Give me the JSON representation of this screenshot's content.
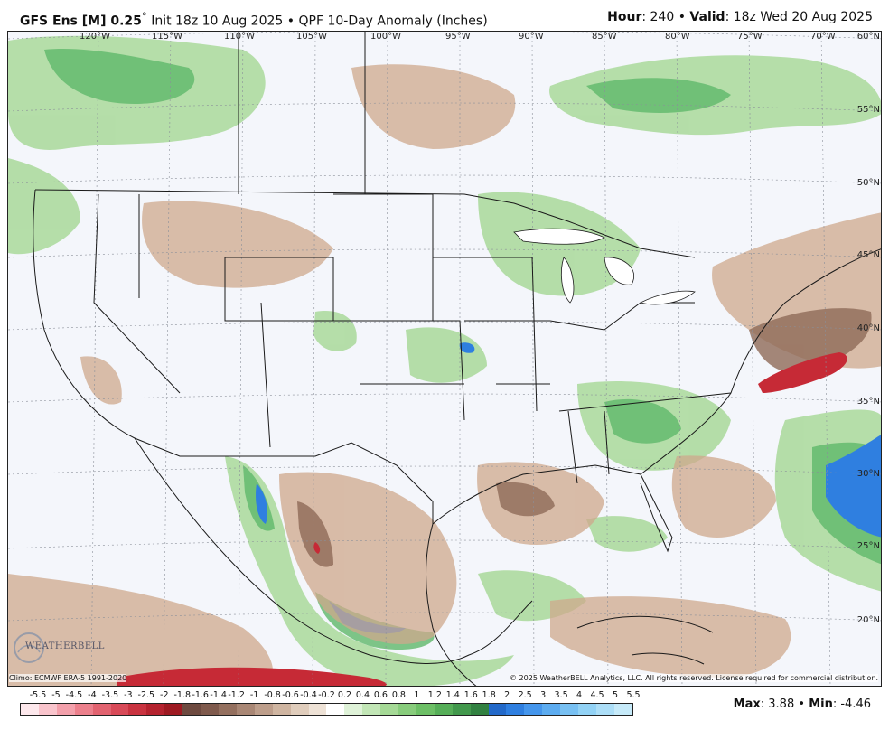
{
  "header": {
    "model": "GFS Ens [M] 0.25",
    "degree": "°",
    "init": "Init 18z 10 Aug 2025",
    "product": "QPF 10-Day Anomaly (Inches)",
    "bullet": "•",
    "hour_label": "Hour",
    "hour_value": ": 240",
    "valid_label": "Valid",
    "valid_value": ": 18z Wed 20 Aug 2025"
  },
  "map": {
    "longitude_labels": [
      "120°W",
      "115°W",
      "110°W",
      "105°W",
      "100°W",
      "95°W",
      "90°W",
      "85°W",
      "80°W",
      "75°W",
      "70°W"
    ],
    "latitude_labels": [
      "60°N",
      "55°N",
      "50°N",
      "45°N",
      "40°N",
      "35°N",
      "30°N",
      "25°N",
      "20°N"
    ],
    "logo_text": "WEATHERBELL",
    "climo_credit": "Climo: ECMWF ERA-5 1991-2020",
    "copyright": "© 2025 WeatherBELL Analytics, LLC. All rights reserved. License required for commercial distribution."
  },
  "legend": {
    "labels": [
      "-5.5",
      "-5",
      "-4.5",
      "-4",
      "-3.5",
      "-3",
      "-2.5",
      "-2",
      "-1.8",
      "-1.6",
      "-1.4",
      "-1.2",
      "-1",
      "-0.8",
      "-0.6",
      "-0.4",
      "-0.2",
      "0.2",
      "0.4",
      "0.6",
      "0.8",
      "1",
      "1.2",
      "1.4",
      "1.6",
      "1.8",
      "2",
      "2.5",
      "3",
      "3.5",
      "4",
      "4.5",
      "5",
      "5.5"
    ],
    "colors": [
      "#fde8ec",
      "#f9c4cc",
      "#f3a0ab",
      "#ec808c",
      "#e26370",
      "#d84a58",
      "#c93340",
      "#b5232f",
      "#9e1a22",
      "#6e4a40",
      "#7f5a4d",
      "#94705f",
      "#a98775",
      "#bd9e8b",
      "#cfb5a1",
      "#e0cdbc",
      "#eee2d6",
      "#ffffff",
      "#dff2d8",
      "#c2e6b6",
      "#a5d996",
      "#88cc7c",
      "#6dbf66",
      "#56ae58",
      "#42984c",
      "#328141",
      "#2369c9",
      "#2f7fe0",
      "#4596ec",
      "#5dacf0",
      "#78c0f2",
      "#92d2f5",
      "#acdef7",
      "#c6eaf9"
    ],
    "max_label": "Max",
    "max_value": ": 3.88",
    "min_label": "Min",
    "min_value": ": -4.46"
  }
}
